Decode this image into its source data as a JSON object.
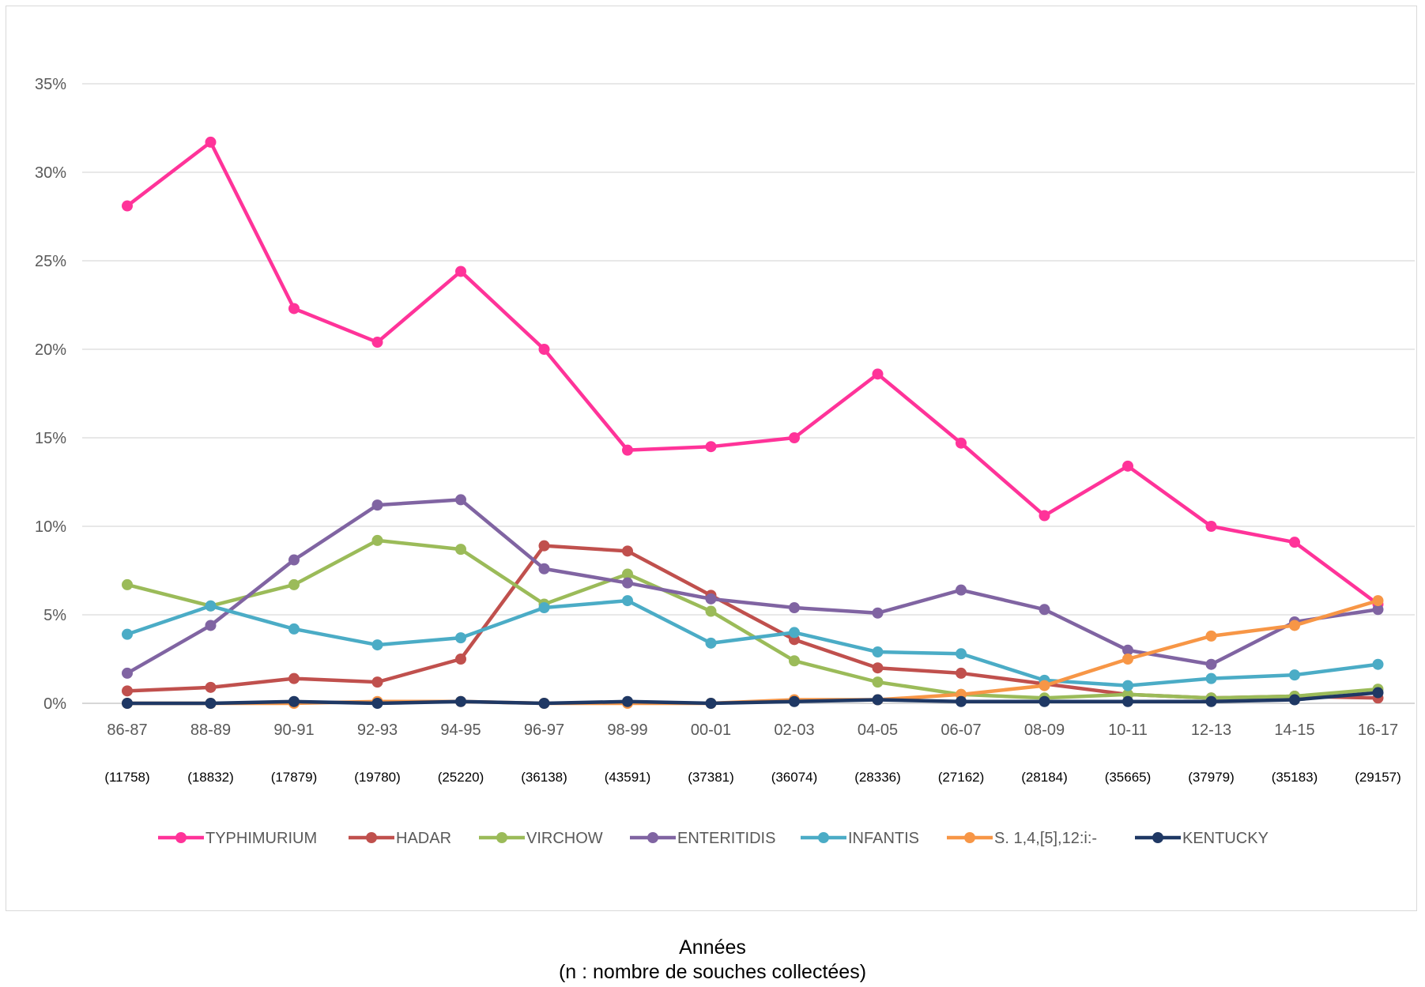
{
  "chart_data": {
    "type": "line",
    "categories": [
      "86-87",
      "88-89",
      "90-91",
      "92-93",
      "94-95",
      "96-97",
      "98-99",
      "00-01",
      "02-03",
      "04-05",
      "06-07",
      "08-09",
      "10-11",
      "12-13",
      "14-15",
      "16-17"
    ],
    "counts": [
      "(11758)",
      "(18832)",
      "(17879)",
      "(19780)",
      "(25220)",
      "(36138)",
      "(43591)",
      "(37381)",
      "(36074)",
      "(28336)",
      "(27162)",
      "(28184)",
      "(35665)",
      "(37979)",
      "(35183)",
      "(29157)"
    ],
    "y_ticks": [
      "0%",
      "5%",
      "10%",
      "15%",
      "20%",
      "25%",
      "30%",
      "35%"
    ],
    "ylim": [
      0,
      35
    ],
    "grid": true,
    "legend_position": "bottom",
    "series": [
      {
        "name": "TYPHIMURIUM",
        "color": "#ff3399",
        "values": [
          28.1,
          31.7,
          22.3,
          20.4,
          24.4,
          20.0,
          14.3,
          14.5,
          15.0,
          18.6,
          14.7,
          10.6,
          13.4,
          10.0,
          9.1,
          5.6
        ]
      },
      {
        "name": "HADAR",
        "color": "#c0504d",
        "values": [
          0.7,
          0.9,
          1.4,
          1.2,
          2.5,
          8.9,
          8.6,
          6.1,
          3.6,
          2.0,
          1.7,
          1.1,
          0.5,
          0.3,
          0.4,
          0.3
        ]
      },
      {
        "name": "VIRCHOW",
        "color": "#9bbb59",
        "values": [
          6.7,
          5.5,
          6.7,
          9.2,
          8.7,
          5.6,
          7.3,
          5.2,
          2.4,
          1.2,
          0.5,
          0.3,
          0.5,
          0.3,
          0.4,
          0.8
        ]
      },
      {
        "name": "ENTERITIDIS",
        "color": "#8064a2",
        "values": [
          1.7,
          4.4,
          8.1,
          11.2,
          11.5,
          7.6,
          6.8,
          5.9,
          5.4,
          5.1,
          6.4,
          5.3,
          3.0,
          2.2,
          4.6,
          5.3
        ]
      },
      {
        "name": "INFANTIS",
        "color": "#4bacc6",
        "values": [
          3.9,
          5.5,
          4.2,
          3.3,
          3.7,
          5.4,
          5.8,
          3.4,
          4.0,
          2.9,
          2.8,
          1.3,
          1.0,
          1.4,
          1.6,
          2.2
        ]
      },
      {
        "name": "S. 1,4,[5],12:i:-",
        "color": "#f79646",
        "values": [
          0.0,
          0.0,
          0.0,
          0.1,
          0.1,
          0.0,
          0.0,
          0.0,
          0.2,
          0.2,
          0.5,
          1.0,
          2.5,
          3.8,
          4.4,
          5.8
        ]
      },
      {
        "name": "KENTUCKY",
        "color": "#1f3864",
        "values": [
          0.0,
          0.0,
          0.1,
          0.0,
          0.1,
          0.0,
          0.1,
          0.0,
          0.1,
          0.2,
          0.1,
          0.1,
          0.1,
          0.1,
          0.2,
          0.6
        ]
      }
    ]
  },
  "caption": {
    "line1": "Années",
    "line2": "(n : nombre de souches collectées)"
  }
}
